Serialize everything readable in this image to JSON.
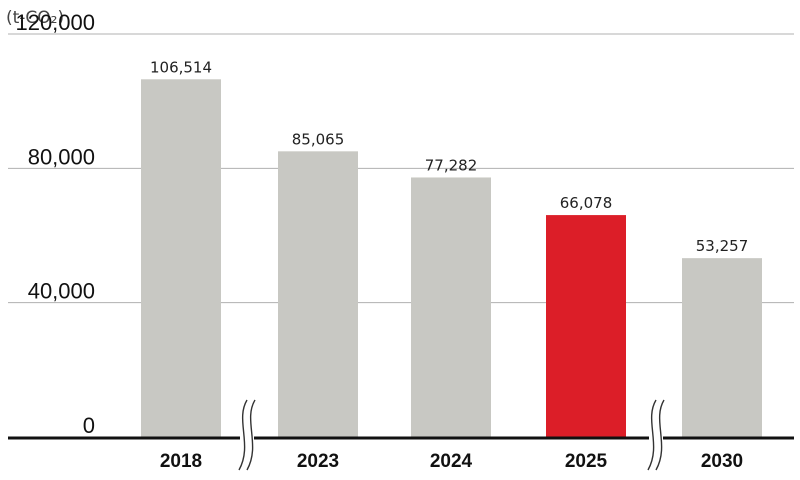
{
  "chart_data": {
    "type": "bar",
    "unit_label": "(t-CO₂)",
    "categories": [
      "2018",
      "2023",
      "2024",
      "2025",
      "2030"
    ],
    "values": [
      106514,
      85065,
      77282,
      66078,
      53257
    ],
    "value_labels": [
      "106,514",
      "85,065",
      "77,282",
      "66,078",
      "53,257"
    ],
    "ylim": [
      0,
      120000
    ],
    "yticks": [
      {
        "value": 0,
        "label": "0"
      },
      {
        "value": 40000,
        "label": "40,000"
      },
      {
        "value": 80000,
        "label": "80,000"
      },
      {
        "value": 120000,
        "label": "120,000"
      }
    ],
    "grid": true,
    "axis_breaks_after": [
      "2018",
      "2025"
    ],
    "highlight_category": "2025",
    "colors": {
      "bar": "#c8c8c3",
      "highlight": "#dc1e28",
      "grid": "#b0b0b0",
      "axis": "#111111"
    }
  }
}
